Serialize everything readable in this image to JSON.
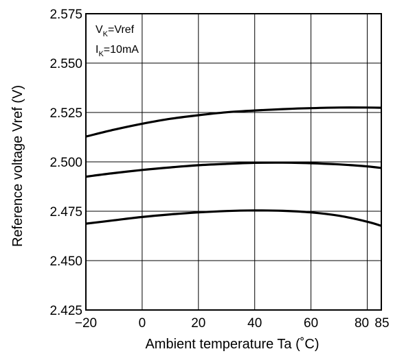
{
  "chart_data": {
    "type": "line",
    "xlabel": "Ambient temperature  Ta (˚C)",
    "ylabel": "Reference voltage  Vref (V)",
    "xlim": [
      -20,
      85
    ],
    "ylim": [
      2.425,
      2.575
    ],
    "x_ticks": [
      -20,
      0,
      20,
      40,
      60,
      80,
      85
    ],
    "x_tick_labels": [
      "−20",
      "0",
      "20",
      "40",
      "60",
      "80",
      "85"
    ],
    "y_ticks": [
      2.425,
      2.45,
      2.475,
      2.5,
      2.525,
      2.55,
      2.575
    ],
    "y_tick_labels": [
      "2.425",
      "2.450",
      "2.475",
      "2.500",
      "2.525",
      "2.550",
      "2.575"
    ],
    "grid": true,
    "conditions": {
      "line1": {
        "main": "V",
        "sub": "K",
        "rest": "=Vref"
      },
      "line2": {
        "main": "I",
        "sub": "K",
        "rest": "=10mA"
      }
    },
    "line_color": "#000000",
    "series": [
      {
        "x": [
          -20,
          -10,
          0,
          10,
          20,
          30,
          40,
          50,
          60,
          70,
          80,
          85
        ],
        "values": [
          2.5128,
          2.5163,
          2.5193,
          2.5218,
          2.5236,
          2.5251,
          2.526,
          2.5267,
          2.5272,
          2.5275,
          2.5275,
          2.5274
        ]
      },
      {
        "x": [
          -20,
          -10,
          0,
          10,
          20,
          30,
          40,
          50,
          60,
          70,
          80,
          85
        ],
        "values": [
          2.4925,
          2.4943,
          2.4959,
          2.4972,
          2.4983,
          2.499,
          2.4995,
          2.4996,
          2.4993,
          2.4987,
          2.4977,
          2.4969
        ]
      },
      {
        "x": [
          -20,
          -10,
          0,
          10,
          20,
          30,
          40,
          50,
          60,
          70,
          80,
          85
        ],
        "values": [
          2.4687,
          2.4704,
          2.4721,
          2.4734,
          2.4744,
          2.4751,
          2.4754,
          2.4752,
          2.4744,
          2.4727,
          2.4697,
          2.4676
        ]
      }
    ]
  }
}
